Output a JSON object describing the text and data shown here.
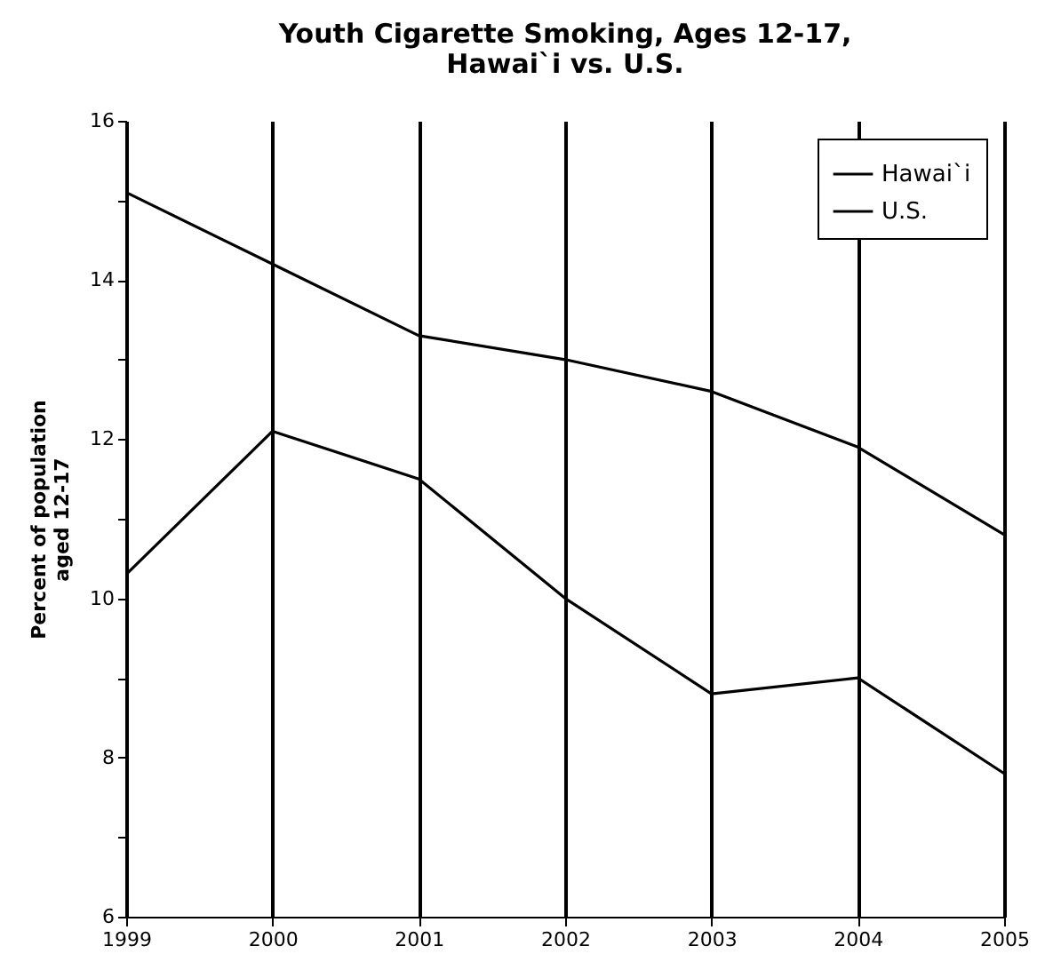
{
  "chart_data": {
    "type": "line",
    "title": [
      "Youth Cigarette Smoking, Ages 12-17,",
      "Hawai`i vs. U.S."
    ],
    "ylabel": [
      "Percent of population",
      "aged 12-17"
    ],
    "categories": [
      "1999",
      "2000",
      "2001",
      "2002",
      "2003",
      "2004",
      "2005"
    ],
    "series": [
      {
        "name": "Hawai`i",
        "color": "#000000",
        "values": [
          10.3,
          12.1,
          11.5,
          10.0,
          8.8,
          9.0,
          7.8
        ]
      },
      {
        "name": "U.S.",
        "color": "#000000",
        "values": [
          15.1,
          14.2,
          13.3,
          13.0,
          12.6,
          11.9,
          10.8
        ]
      }
    ],
    "ylim": [
      6,
      16
    ],
    "yticks": [
      6,
      {
        "value": 7,
        "label": null
      },
      8,
      {
        "value": 9,
        "label": null
      },
      10,
      {
        "value": 11,
        "label": null
      },
      12,
      {
        "value": 13,
        "label": null
      },
      14,
      {
        "value": 15,
        "label": null
      },
      16
    ],
    "grid": "x",
    "legend": "top right",
    "line_style": "solid",
    "marker": "none"
  }
}
